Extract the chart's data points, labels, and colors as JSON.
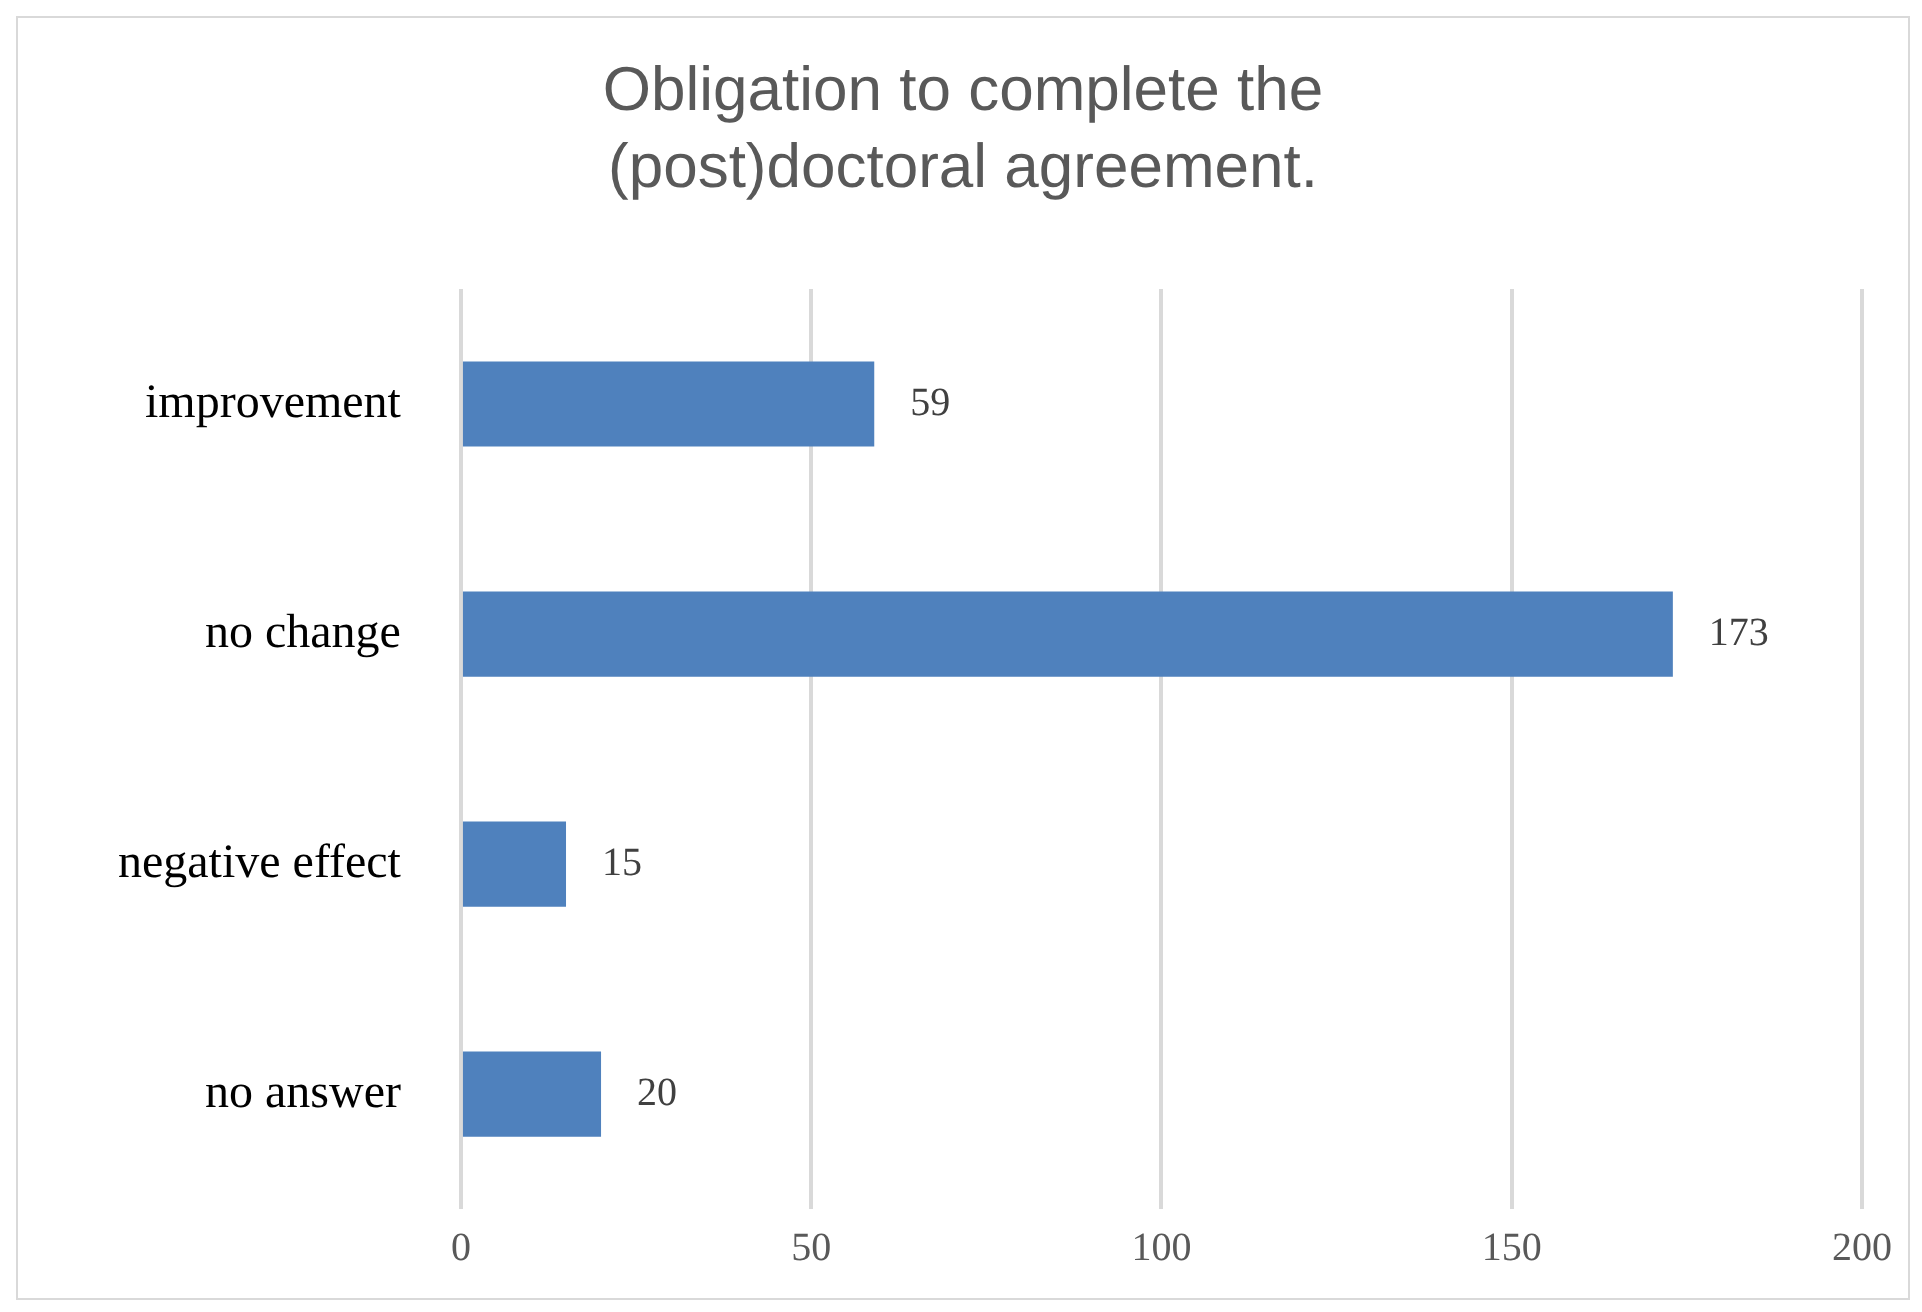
{
  "chart_data": {
    "type": "bar",
    "orientation": "horizontal",
    "title": "Obligation to complete the (post)doctoral agreement.",
    "categories": [
      "improvement",
      "no change",
      "negative effect",
      "no answer"
    ],
    "values": [
      59,
      173,
      15,
      20
    ],
    "color": "#4f81bd",
    "xlim": [
      0,
      200
    ],
    "xticks": [
      0,
      50,
      100,
      150,
      200
    ],
    "grid": "x",
    "data_labels": true,
    "legend": false
  }
}
